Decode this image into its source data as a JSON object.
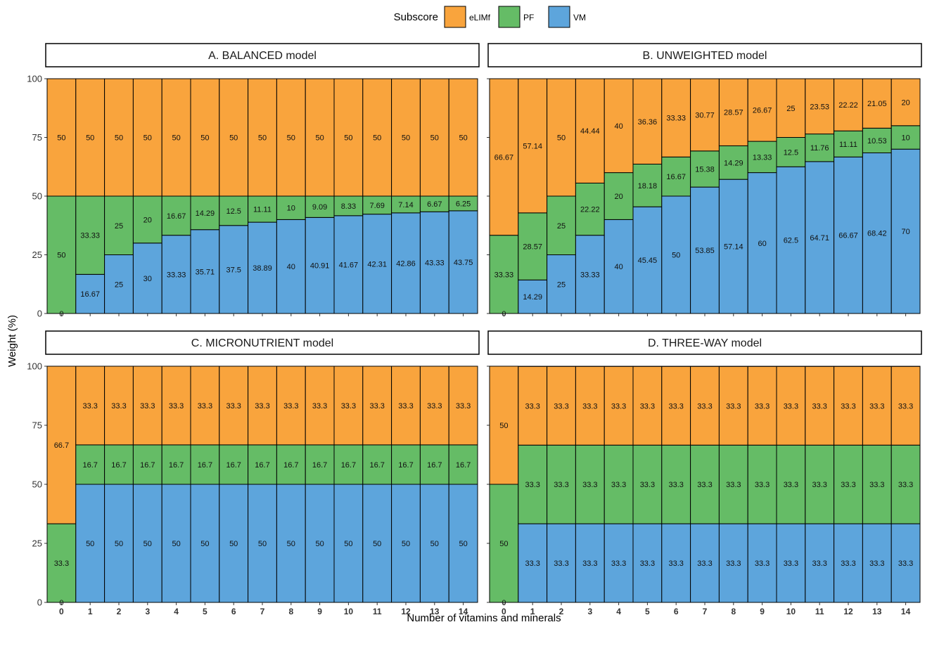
{
  "colors": {
    "eLIMf": "#F9A43D",
    "PF": "#65BC66",
    "VM": "#5DA5DC"
  },
  "legend": {
    "title": "Subscore",
    "items": [
      {
        "key": "eLIMf",
        "label": "eLIMf"
      },
      {
        "key": "PF",
        "label": "PF"
      },
      {
        "key": "VM",
        "label": "VM"
      }
    ]
  },
  "xlabel": "Number of vitamins and minerals",
  "ylabel": "Weight (%)",
  "chart_data": [
    {
      "type": "bar",
      "stacked": true,
      "title": "A. BALANCED model",
      "categories": [
        "0",
        "1",
        "2",
        "3",
        "4",
        "5",
        "6",
        "7",
        "8",
        "9",
        "10",
        "11",
        "12",
        "13",
        "14"
      ],
      "ylim": [
        0,
        100
      ],
      "yticks": [
        "0",
        "25",
        "50",
        "75",
        "100"
      ],
      "series": [
        {
          "name": "VM",
          "values": [
            0,
            16.67,
            25,
            30,
            33.33,
            35.71,
            37.5,
            38.89,
            40,
            40.91,
            41.67,
            42.31,
            42.86,
            43.33,
            43.75
          ],
          "labels": [
            "0",
            "16.67",
            "25",
            "30",
            "33.33",
            "35.71",
            "37.5",
            "38.89",
            "40",
            "40.91",
            "41.67",
            "42.31",
            "42.86",
            "43.33",
            "43.75"
          ]
        },
        {
          "name": "PF",
          "values": [
            50,
            33.33,
            25,
            20,
            16.67,
            14.29,
            12.5,
            11.11,
            10,
            9.09,
            8.33,
            7.69,
            7.14,
            6.67,
            6.25
          ],
          "labels": [
            "50",
            "33.33",
            "25",
            "20",
            "16.67",
            "14.29",
            "12.5",
            "11.11",
            "10",
            "9.09",
            "8.33",
            "7.69",
            "7.14",
            "6.67",
            "6.25"
          ]
        },
        {
          "name": "eLIMf",
          "values": [
            50,
            50,
            50,
            50,
            50,
            50,
            50,
            50,
            50,
            50,
            50,
            50,
            50,
            50,
            50
          ],
          "labels": [
            "50",
            "50",
            "50",
            "50",
            "50",
            "50",
            "50",
            "50",
            "50",
            "50",
            "50",
            "50",
            "50",
            "50",
            "50"
          ]
        }
      ]
    },
    {
      "type": "bar",
      "stacked": true,
      "title": "B. UNWEIGHTED model",
      "categories": [
        "0",
        "1",
        "2",
        "3",
        "4",
        "5",
        "6",
        "7",
        "8",
        "9",
        "10",
        "11",
        "12",
        "13",
        "14"
      ],
      "ylim": [
        0,
        100
      ],
      "yticks": [
        "0",
        "25",
        "50",
        "75",
        "100"
      ],
      "series": [
        {
          "name": "VM",
          "values": [
            0,
            14.29,
            25,
            33.33,
            40,
            45.45,
            50,
            53.85,
            57.14,
            60,
            62.5,
            64.71,
            66.67,
            68.42,
            70
          ],
          "labels": [
            "0",
            "14.29",
            "25",
            "33.33",
            "40",
            "45.45",
            "50",
            "53.85",
            "57.14",
            "60",
            "62.5",
            "64.71",
            "66.67",
            "68.42",
            "70"
          ]
        },
        {
          "name": "PF",
          "values": [
            33.33,
            28.57,
            25,
            22.22,
            20,
            18.18,
            16.67,
            15.38,
            14.29,
            13.33,
            12.5,
            11.76,
            11.11,
            10.53,
            10
          ],
          "labels": [
            "33.33",
            "28.57",
            "25",
            "22.22",
            "20",
            "18.18",
            "16.67",
            "15.38",
            "14.29",
            "13.33",
            "12.5",
            "11.76",
            "11.11",
            "10.53",
            "10"
          ]
        },
        {
          "name": "eLIMf",
          "values": [
            66.67,
            57.14,
            50,
            44.44,
            40,
            36.36,
            33.33,
            30.77,
            28.57,
            26.67,
            25,
            23.53,
            22.22,
            21.05,
            20
          ],
          "labels": [
            "66.67",
            "57.14",
            "50",
            "44.44",
            "40",
            "36.36",
            "33.33",
            "30.77",
            "28.57",
            "26.67",
            "25",
            "23.53",
            "22.22",
            "21.05",
            "20"
          ]
        }
      ]
    },
    {
      "type": "bar",
      "stacked": true,
      "title": "C. MICRONUTRIENT model",
      "categories": [
        "0",
        "1",
        "2",
        "3",
        "4",
        "5",
        "6",
        "7",
        "8",
        "9",
        "10",
        "11",
        "12",
        "13",
        "14"
      ],
      "ylim": [
        0,
        100
      ],
      "yticks": [
        "0",
        "25",
        "50",
        "75",
        "100"
      ],
      "series": [
        {
          "name": "VM",
          "values": [
            0,
            50,
            50,
            50,
            50,
            50,
            50,
            50,
            50,
            50,
            50,
            50,
            50,
            50,
            50
          ],
          "labels": [
            "0",
            "50",
            "50",
            "50",
            "50",
            "50",
            "50",
            "50",
            "50",
            "50",
            "50",
            "50",
            "50",
            "50",
            "50"
          ]
        },
        {
          "name": "PF",
          "values": [
            33.3,
            16.7,
            16.7,
            16.7,
            16.7,
            16.7,
            16.7,
            16.7,
            16.7,
            16.7,
            16.7,
            16.7,
            16.7,
            16.7,
            16.7
          ],
          "labels": [
            "33.3",
            "16.7",
            "16.7",
            "16.7",
            "16.7",
            "16.7",
            "16.7",
            "16.7",
            "16.7",
            "16.7",
            "16.7",
            "16.7",
            "16.7",
            "16.7",
            "16.7"
          ]
        },
        {
          "name": "eLIMf",
          "values": [
            66.7,
            33.3,
            33.3,
            33.3,
            33.3,
            33.3,
            33.3,
            33.3,
            33.3,
            33.3,
            33.3,
            33.3,
            33.3,
            33.3,
            33.3
          ],
          "labels": [
            "66.7",
            "33.3",
            "33.3",
            "33.3",
            "33.3",
            "33.3",
            "33.3",
            "33.3",
            "33.3",
            "33.3",
            "33.3",
            "33.3",
            "33.3",
            "33.3",
            "33.3"
          ]
        }
      ]
    },
    {
      "type": "bar",
      "stacked": true,
      "title": "D. THREE-WAY model",
      "categories": [
        "0",
        "1",
        "2",
        "3",
        "4",
        "5",
        "6",
        "7",
        "8",
        "9",
        "10",
        "11",
        "12",
        "13",
        "14"
      ],
      "ylim": [
        0,
        100
      ],
      "yticks": [
        "0",
        "25",
        "50",
        "75",
        "100"
      ],
      "series": [
        {
          "name": "VM",
          "values": [
            0,
            33.3,
            33.3,
            33.3,
            33.3,
            33.3,
            33.3,
            33.3,
            33.3,
            33.3,
            33.3,
            33.3,
            33.3,
            33.3,
            33.3
          ],
          "labels": [
            "0",
            "33.3",
            "33.3",
            "33.3",
            "33.3",
            "33.3",
            "33.3",
            "33.3",
            "33.3",
            "33.3",
            "33.3",
            "33.3",
            "33.3",
            "33.3",
            "33.3"
          ]
        },
        {
          "name": "PF",
          "values": [
            50,
            33.3,
            33.3,
            33.3,
            33.3,
            33.3,
            33.3,
            33.3,
            33.3,
            33.3,
            33.3,
            33.3,
            33.3,
            33.3,
            33.3
          ],
          "labels": [
            "50",
            "33.3",
            "33.3",
            "33.3",
            "33.3",
            "33.3",
            "33.3",
            "33.3",
            "33.3",
            "33.3",
            "33.3",
            "33.3",
            "33.3",
            "33.3",
            "33.3"
          ]
        },
        {
          "name": "eLIMf",
          "values": [
            50,
            33.3,
            33.3,
            33.3,
            33.3,
            33.3,
            33.3,
            33.3,
            33.3,
            33.3,
            33.3,
            33.3,
            33.3,
            33.3,
            33.3
          ],
          "labels": [
            "50",
            "33.3",
            "33.3",
            "33.3",
            "33.3",
            "33.3",
            "33.3",
            "33.3",
            "33.3",
            "33.3",
            "33.3",
            "33.3",
            "33.3",
            "33.3",
            "33.3"
          ]
        }
      ]
    }
  ]
}
